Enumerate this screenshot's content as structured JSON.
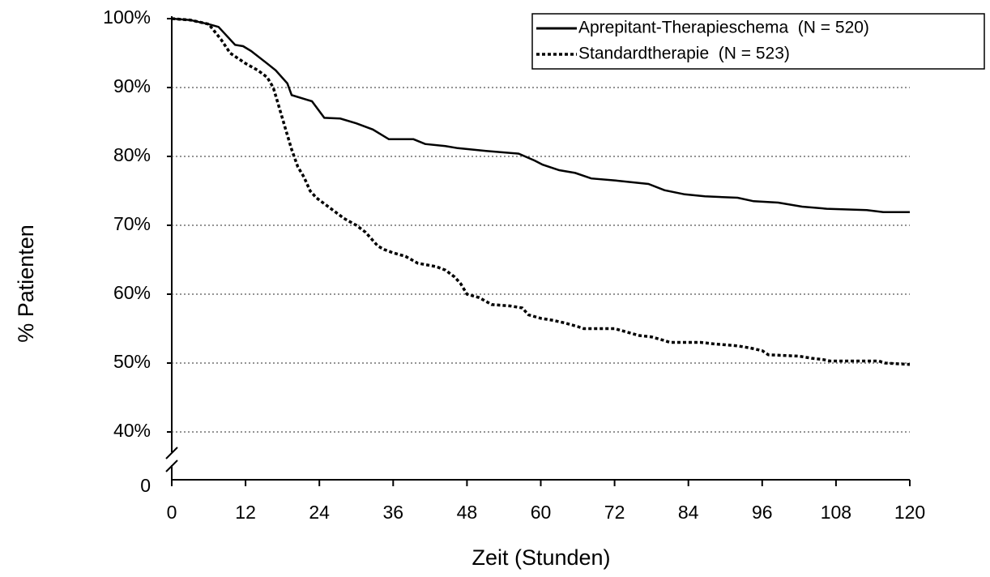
{
  "chart_data": {
    "type": "line",
    "y_label": "% Patienten",
    "x_label": "Zeit (Stunden)",
    "xlim": [
      0,
      120
    ],
    "xticks": [
      0,
      12,
      24,
      36,
      48,
      60,
      72,
      84,
      96,
      108,
      120
    ],
    "ylim": [
      40,
      100
    ],
    "yticks": [
      {
        "value": 40,
        "label": "40%"
      },
      {
        "value": 50,
        "label": "50%"
      },
      {
        "value": 60,
        "label": "60%"
      },
      {
        "value": 70,
        "label": "70%"
      },
      {
        "value": 80,
        "label": "80%"
      },
      {
        "value": 90,
        "label": "90%"
      },
      {
        "value": 100,
        "label": "100%"
      }
    ],
    "y_break_tick": {
      "value": 0,
      "label": "0"
    },
    "grid": true,
    "legend_position": "upper right",
    "series": [
      {
        "name": "Aprepitant-Therapieschema  (N = 520)",
        "color": "#000000",
        "dash": "solid",
        "x": [
          0,
          3,
          6,
          7.6,
          10.3,
          11.6,
          12.9,
          15.5,
          16.9,
          18.8,
          19.5,
          22.8,
          24.8,
          27.4,
          30,
          32.7,
          35.3,
          39.3,
          41.2,
          44.5,
          46.5,
          51.1,
          56.4,
          59,
          60.3,
          63,
          65.6,
          68.2,
          72.2,
          77.5,
          80.1,
          83.4,
          86.7,
          92,
          94.6,
          98.6,
          102.5,
          106.5,
          113,
          115.7,
          120
        ],
        "values": [
          100,
          99.8,
          99.2,
          98.8,
          96.2,
          96,
          95.3,
          93.5,
          92.5,
          90.6,
          88.9,
          88,
          85.6,
          85.5,
          84.8,
          83.9,
          82.5,
          82.5,
          81.8,
          81.5,
          81.2,
          80.8,
          80.4,
          79.4,
          78.8,
          78,
          77.6,
          76.8,
          76.5,
          76,
          75.1,
          74.5,
          74.2,
          74,
          73.5,
          73.3,
          72.7,
          72.4,
          72.2,
          71.9,
          71.9
        ]
      },
      {
        "name": "Standardtherapie  (N = 523)",
        "color": "#000000",
        "dash": "dotted",
        "x": [
          0,
          3,
          6,
          8,
          9.5,
          12,
          14,
          15.5,
          16.5,
          17.5,
          18.5,
          19.5,
          20.5,
          21.5,
          22.5,
          23.5,
          25,
          26.5,
          28,
          30,
          31.5,
          32.5,
          33.5,
          34.5,
          36,
          38,
          40,
          43,
          44.5,
          46,
          47,
          48,
          50,
          51,
          52,
          55,
          57,
          58,
          60,
          62,
          64,
          66,
          67,
          72,
          74,
          76,
          78,
          80,
          81,
          86,
          88,
          92,
          94,
          96,
          97,
          102,
          104,
          106,
          107,
          115,
          116,
          120
        ],
        "values": [
          100,
          99.8,
          99.2,
          97,
          95,
          93.5,
          92.5,
          91.5,
          90,
          87,
          84,
          81,
          78.5,
          77,
          75,
          74,
          73,
          72,
          71,
          70,
          69,
          68,
          67,
          66.5,
          66,
          65.5,
          64.5,
          64,
          63.5,
          62.5,
          61.5,
          60,
          59.5,
          59,
          58.5,
          58.3,
          58,
          57,
          56.5,
          56.2,
          55.8,
          55.3,
          55,
          55,
          54.5,
          54,
          53.8,
          53.3,
          53,
          53,
          52.8,
          52.5,
          52.2,
          51.8,
          51.2,
          51,
          50.7,
          50.5,
          50.3,
          50.3,
          50,
          49.8
        ]
      }
    ]
  }
}
